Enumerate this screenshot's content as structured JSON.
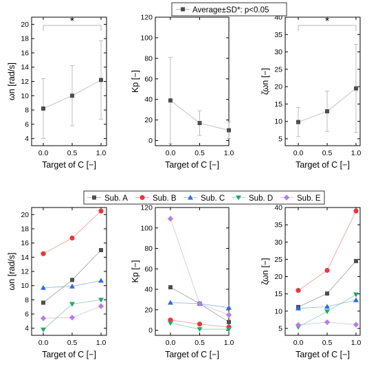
{
  "legend_top": {
    "label": "Average±SD",
    "note": "*: p<0.05"
  },
  "legend_bottom": [
    "Sub. A",
    "Sub. B",
    "Sub. C",
    "Sub. D",
    "Sub. E"
  ],
  "colors": {
    "avg": "#4d4d4d",
    "sub_a": "#4d4d4d",
    "sub_b": "#e8383d",
    "sub_c": "#2a6de0",
    "sub_d": "#21a86a",
    "sub_e": "#b57fe0"
  },
  "chart_data": [
    {
      "type": "line",
      "panel": "top-left",
      "x": [
        "0.0",
        "0.5",
        "1.0"
      ],
      "xlabel": "Target of C [−]",
      "ylabel": "ωn [rad/s]",
      "ylim": [
        3,
        21
      ],
      "yticks": [
        4,
        6,
        8,
        10,
        12,
        14,
        16,
        18,
        20
      ],
      "series": [
        {
          "name": "Average±SD",
          "values": [
            8.2,
            10.0,
            12.2
          ],
          "sd": [
            4.2,
            4.2,
            5.5
          ]
        }
      ],
      "significance": {
        "between": [
          "0.0",
          "1.0"
        ],
        "marker": "*"
      }
    },
    {
      "type": "line",
      "panel": "top-middle",
      "x": [
        "0.0",
        "0.5",
        "1.0"
      ],
      "xlabel": "Target of C [−]",
      "ylabel": "Kp [−]",
      "ylim": [
        -5,
        120
      ],
      "yticks": [
        0,
        20,
        40,
        60,
        80,
        100,
        120
      ],
      "series": [
        {
          "name": "Average±SD",
          "values": [
            39,
            17,
            10
          ],
          "sd": [
            42,
            12,
            8
          ]
        }
      ]
    },
    {
      "type": "line",
      "panel": "top-right",
      "x": [
        "0.0",
        "0.5",
        "1.0"
      ],
      "xlabel": "Target of C [−]",
      "ylabel": "ζωn [−]",
      "ylim": [
        3,
        40
      ],
      "yticks": [
        5,
        10,
        15,
        20,
        25,
        30,
        35,
        40
      ],
      "series": [
        {
          "name": "Average±SD",
          "values": [
            9.8,
            12.9,
            19.5
          ],
          "sd": [
            4.2,
            5.8,
            12.7
          ]
        }
      ],
      "significance": {
        "between": [
          "0.0",
          "1.0"
        ],
        "marker": "*"
      }
    },
    {
      "type": "line",
      "panel": "bottom-left",
      "x": [
        "0.0",
        "0.5",
        "1.0"
      ],
      "xlabel": "Target of C [−]",
      "ylabel": "ωn [rad/s]",
      "ylim": [
        3,
        21
      ],
      "yticks": [
        4,
        6,
        8,
        10,
        12,
        14,
        16,
        18,
        20
      ],
      "series": [
        {
          "name": "Sub. A",
          "values": [
            7.6,
            10.8,
            15.0
          ]
        },
        {
          "name": "Sub. B",
          "values": [
            14.5,
            16.7,
            20.5
          ]
        },
        {
          "name": "Sub. C",
          "values": [
            9.7,
            9.9,
            10.7
          ]
        },
        {
          "name": "Sub. D",
          "values": [
            3.8,
            7.4,
            8.0
          ]
        },
        {
          "name": "Sub. E",
          "values": [
            5.4,
            5.5,
            7.1
          ]
        }
      ]
    },
    {
      "type": "line",
      "panel": "bottom-middle",
      "x": [
        "0.0",
        "0.5",
        "1.0"
      ],
      "xlabel": "Target of C [−]",
      "ylabel": "Kp [−]",
      "ylim": [
        -5,
        120
      ],
      "yticks": [
        0,
        20,
        40,
        60,
        80,
        100,
        120
      ],
      "series": [
        {
          "name": "Sub. A",
          "values": [
            42,
            26,
            8
          ]
        },
        {
          "name": "Sub. B",
          "values": [
            10,
            6,
            3
          ]
        },
        {
          "name": "Sub. C",
          "values": [
            27,
            26,
            22
          ]
        },
        {
          "name": "Sub. D",
          "values": [
            7,
            1,
            1
          ]
        },
        {
          "name": "Sub. E",
          "values": [
            109,
            26,
            15
          ]
        }
      ]
    },
    {
      "type": "line",
      "panel": "bottom-right",
      "x": [
        "0.0",
        "0.5",
        "1.0"
      ],
      "xlabel": "Target of C [−]",
      "ylabel": "ζωn [−]",
      "ylim": [
        3,
        40
      ],
      "yticks": [
        5,
        10,
        15,
        20,
        25,
        30,
        35,
        40
      ],
      "series": [
        {
          "name": "Sub. A",
          "values": [
            11.2,
            15.1,
            24.5
          ]
        },
        {
          "name": "Sub. B",
          "values": [
            16.0,
            21.8,
            39.0
          ]
        },
        {
          "name": "Sub. C",
          "values": [
            10.8,
            11.3,
            13.2
          ]
        },
        {
          "name": "Sub. D",
          "values": [
            5.4,
            9.9,
            14.8
          ]
        },
        {
          "name": "Sub. E",
          "values": [
            6.0,
            6.8,
            6.1
          ]
        }
      ]
    }
  ]
}
